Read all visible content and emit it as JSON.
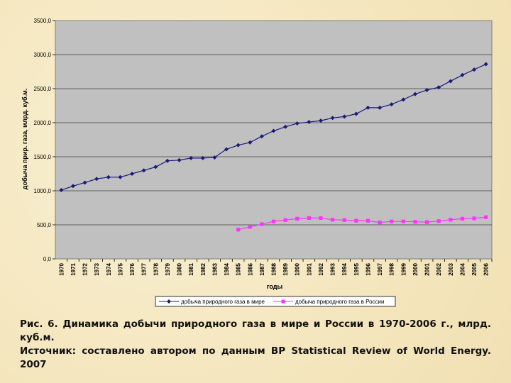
{
  "chart_data": {
    "type": "line",
    "xlabel": "годы",
    "ylabel": "добыча прир. газа, млрд. куб.м.",
    "ylim": [
      0,
      3500
    ],
    "yticks": [
      "0,0",
      "500,0",
      "1000,0",
      "1500,0",
      "2000,0",
      "2500,0",
      "3000,0",
      "3500,0"
    ],
    "categories": [
      "1970",
      "1971",
      "1972",
      "1973",
      "1974",
      "1975",
      "1976",
      "1977",
      "1978",
      "1979",
      "1980",
      "1981",
      "1982",
      "1983",
      "1984",
      "1985",
      "1986",
      "1987",
      "1988",
      "1989",
      "1990",
      "1991",
      "1992",
      "1993",
      "1994",
      "1995",
      "1996",
      "1997",
      "1998",
      "1999",
      "2000",
      "2001",
      "2002",
      "2003",
      "2004",
      "2005",
      "2006"
    ],
    "grid": true,
    "legend_position": "bottom",
    "series": [
      {
        "name": "добыча природного газа в мире",
        "color": "#1a1a7a",
        "marker": "diamond",
        "values": [
          1010,
          1070,
          1120,
          1175,
          1200,
          1200,
          1250,
          1300,
          1350,
          1440,
          1450,
          1480,
          1480,
          1490,
          1610,
          1670,
          1710,
          1800,
          1880,
          1940,
          1990,
          2010,
          2030,
          2070,
          2090,
          2130,
          2220,
          2220,
          2270,
          2340,
          2420,
          2480,
          2520,
          2610,
          2700,
          2780,
          2860
        ]
      },
      {
        "name": "добыча природного газа в России",
        "color": "#ff33ff",
        "marker": "square",
        "values": [
          null,
          null,
          null,
          null,
          null,
          null,
          null,
          null,
          null,
          null,
          null,
          null,
          null,
          null,
          null,
          430,
          470,
          510,
          550,
          570,
          590,
          600,
          600,
          575,
          570,
          560,
          560,
          535,
          550,
          550,
          545,
          540,
          555,
          575,
          590,
          595,
          612
        ]
      }
    ]
  },
  "caption": {
    "line1": "Рис. 6. Динамика добычи природного газа в мире и России в 1970-2006 г., млрд. куб.м.",
    "line2": "Источник: составлено автором по данным BP Statistical Review of World Energy. 2007"
  }
}
